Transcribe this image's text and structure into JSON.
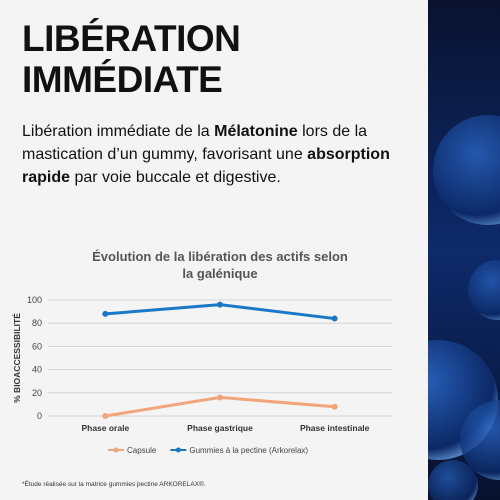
{
  "heading": [
    "LIBÉRATION",
    "IMMÉDIATE"
  ],
  "paragraph": [
    {
      "text": "Libération immédiate de la ",
      "bold": false
    },
    {
      "text": "Mélatonine",
      "bold": true
    },
    {
      "text": " lors de la mastication d’un gummy, favorisant une ",
      "bold": false
    },
    {
      "text": "absorption rapide",
      "bold": true
    },
    {
      "text": " par voie buccale et digestive.",
      "bold": false
    }
  ],
  "chart_data": {
    "type": "line",
    "title": "Évolution de la libération des actifs selon la galénique",
    "y_label": "% BIOACCESSIBILITÉ",
    "categories": [
      "Phase orale",
      "Phase gastrique",
      "Phase intestinale"
    ],
    "series": [
      {
        "name": "Capsule",
        "color": "#f2a57a",
        "values": [
          0,
          16,
          8
        ]
      },
      {
        "name": "Gummies à la pectine (Arkorelax)",
        "color": "#1a78c8",
        "values": [
          88,
          96,
          84
        ]
      }
    ],
    "ylim": [
      0,
      100
    ],
    "yticks": [
      0,
      20,
      40,
      60,
      80,
      100
    ],
    "grid": true,
    "legend": "bottom"
  },
  "footnote": "*Étude réalisée sur la matrice gummies pectine ARKORELAX®."
}
